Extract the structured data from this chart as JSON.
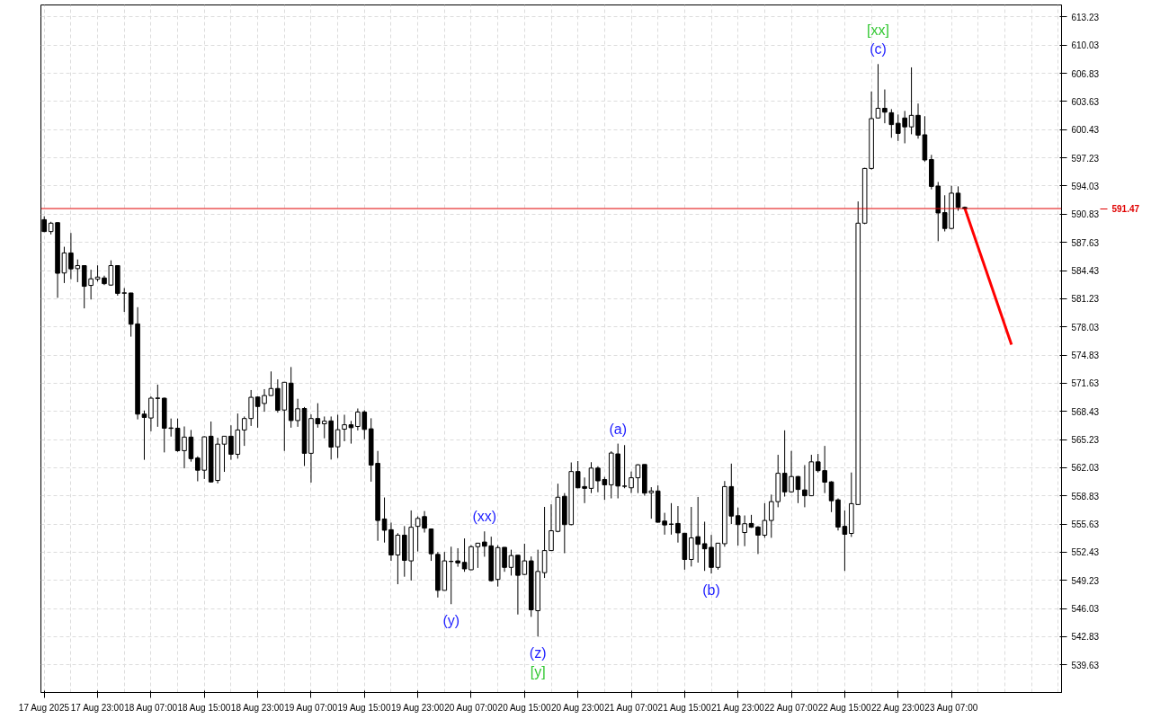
{
  "chart_data": {
    "type": "candlestick",
    "categories": [
      "17 Aug 2025",
      null,
      null,
      null,
      null,
      null,
      null,
      null,
      "17 Aug 23:00",
      null,
      null,
      null,
      null,
      null,
      null,
      null,
      "18 Aug 07:00",
      null,
      null,
      null,
      null,
      null,
      null,
      null,
      "18 Aug 15:00",
      null,
      null,
      null,
      null,
      null,
      null,
      null,
      "18 Aug 23:00",
      null,
      null,
      null,
      null,
      null,
      null,
      null,
      "19 Aug 07:00",
      null,
      null,
      null,
      null,
      null,
      null,
      null,
      "19 Aug 15:00",
      null,
      null,
      null,
      null,
      null,
      null,
      null,
      "19 Aug 23:00",
      null,
      null,
      null,
      null,
      null,
      null,
      null,
      "20 Aug 07:00",
      null,
      null,
      null,
      null,
      null,
      null,
      null,
      "20 Aug 15:00",
      null,
      null,
      null,
      null,
      null,
      null,
      null,
      "20 Aug 23:00",
      null,
      null,
      null,
      null,
      null,
      null,
      null,
      "21 Aug 07:00",
      null,
      null,
      null,
      null,
      null,
      null,
      null,
      "21 Aug 15:00",
      null,
      null,
      null,
      null,
      null,
      null,
      null,
      "21 Aug 23:00",
      null,
      null,
      null,
      null,
      null,
      null,
      null,
      "22 Aug 07:00",
      null,
      null,
      null,
      null,
      null,
      null,
      null,
      "22 Aug 15:00",
      null,
      null,
      null,
      null,
      null,
      null,
      null,
      "22 Aug 23:00",
      null,
      null,
      null,
      null,
      null,
      null,
      null,
      "23 Aug 07:00",
      null,
      null,
      null,
      null,
      null,
      null,
      null,
      null,
      null,
      null,
      null,
      null,
      null,
      null,
      null,
      null
    ],
    "ohlc": [
      [
        590.21,
        590.6,
        588.8,
        588.86
      ],
      [
        588.86,
        589.97,
        588.53,
        589.81
      ],
      [
        589.87,
        589.9,
        581.33,
        584.12
      ],
      [
        584.15,
        587.13,
        583.01,
        586.43
      ],
      [
        586.43,
        588.7,
        583.44,
        584.62
      ],
      [
        584.65,
        585.69,
        583.11,
        584.99
      ],
      [
        584.99,
        585.0,
        580.13,
        582.64
      ],
      [
        582.74,
        584.52,
        581.14,
        583.49
      ],
      [
        583.45,
        585.02,
        583.18,
        583.69
      ],
      [
        583.59,
        583.85,
        582.78,
        582.94
      ],
      [
        582.78,
        585.59,
        582.7,
        584.99
      ],
      [
        584.99,
        585.0,
        581.58,
        581.84
      ],
      [
        581.85,
        582.44,
        579.73,
        581.9
      ],
      [
        581.88,
        581.9,
        576.92,
        578.33
      ],
      [
        578.37,
        580.27,
        567.52,
        568.12
      ],
      [
        568.12,
        568.53,
        562.93,
        567.75
      ],
      [
        567.68,
        570.13,
        566.17,
        569.93
      ],
      [
        569.9,
        571.47,
        566.68,
        569.95
      ],
      [
        569.93,
        570.0,
        563.77,
        566.52
      ],
      [
        566.5,
        567.62,
        565.57,
        566.55
      ],
      [
        566.52,
        567.62,
        563.84,
        563.97
      ],
      [
        563.97,
        566.72,
        561.96,
        565.51
      ],
      [
        565.51,
        566.32,
        562.72,
        563.06
      ],
      [
        563.13,
        563.33,
        560.49,
        561.75
      ],
      [
        561.75,
        565.61,
        560.75,
        565.54
      ],
      [
        565.61,
        567.28,
        560.35,
        560.42
      ],
      [
        560.59,
        565.44,
        560.25,
        564.71
      ],
      [
        564.71,
        565.61,
        561.56,
        565.61
      ],
      [
        565.61,
        566.85,
        562.93,
        563.56
      ],
      [
        563.56,
        568.19,
        563.06,
        566.32
      ],
      [
        566.32,
        567.85,
        564.51,
        567.62
      ],
      [
        567.62,
        570.86,
        566.78,
        570.03
      ],
      [
        570.06,
        570.13,
        566.58,
        568.99
      ],
      [
        569.33,
        570.96,
        568.39,
        570.23
      ],
      [
        570.23,
        572.97,
        570.2,
        571.03
      ],
      [
        571.03,
        572.07,
        568.29,
        568.56
      ],
      [
        568.59,
        571.74,
        563.94,
        571.74
      ],
      [
        571.64,
        573.47,
        566.58,
        567.39
      ],
      [
        567.39,
        569.86,
        566.68,
        568.73
      ],
      [
        568.76,
        568.93,
        562.23,
        563.67
      ],
      [
        563.67,
        568.09,
        560.35,
        567.62
      ],
      [
        567.62,
        569.36,
        566.58,
        567.02
      ],
      [
        567.02,
        567.85,
        565.37,
        567.32
      ],
      [
        567.35,
        567.85,
        562.96,
        564.37
      ],
      [
        564.41,
        568.05,
        563.13,
        566.35
      ],
      [
        566.41,
        568.05,
        565.04,
        566.91
      ],
      [
        566.91,
        567.35,
        564.77,
        566.58
      ],
      [
        566.72,
        568.76,
        566.27,
        568.36
      ],
      [
        568.36,
        568.56,
        565.27,
        566.38
      ],
      [
        566.45,
        567.65,
        560.45,
        562.33
      ],
      [
        562.53,
        563.94,
        553.73,
        556.04
      ],
      [
        556.21,
        558.65,
        553.53,
        554.93
      ],
      [
        554.99,
        555.8,
        551.45,
        552.12
      ],
      [
        552.12,
        554.6,
        548.8,
        554.37
      ],
      [
        554.37,
        555.4,
        549.65,
        551.51
      ],
      [
        551.45,
        557.18,
        549.21,
        555.27
      ],
      [
        555.37,
        556.51,
        552.52,
        556.27
      ],
      [
        556.48,
        557.11,
        554.67,
        555.17
      ],
      [
        555.07,
        555.1,
        551.45,
        552.26
      ],
      [
        552.19,
        552.46,
        547.29,
        548.1
      ],
      [
        548.1,
        552.46,
        548.1,
        551.45
      ],
      [
        551.38,
        553.06,
        546.53,
        551.4
      ],
      [
        551.45,
        552.89,
        550.78,
        551.22
      ],
      [
        551.28,
        554.0,
        550.21,
        550.54
      ],
      [
        550.44,
        553.23,
        550.4,
        553.06
      ],
      [
        553.06,
        553.5,
        550.65,
        553.46
      ],
      [
        553.59,
        554.8,
        551.92,
        553.12
      ],
      [
        553.16,
        554.2,
        549.1,
        549.2
      ],
      [
        549.34,
        553.23,
        548.53,
        552.96
      ],
      [
        552.99,
        553.0,
        550.21,
        550.71
      ],
      [
        550.71,
        552.72,
        549.78,
        552.05
      ],
      [
        552.09,
        552.1,
        545.36,
        549.81
      ],
      [
        549.91,
        553.4,
        549.84,
        551.45
      ],
      [
        551.45,
        551.95,
        545.09,
        545.89
      ],
      [
        545.79,
        552.72,
        542.85,
        550.25
      ],
      [
        550.11,
        557.58,
        549.51,
        552.62
      ],
      [
        552.62,
        557.88,
        552.6,
        554.87
      ],
      [
        554.8,
        560.22,
        554.7,
        558.68
      ],
      [
        558.78,
        559.15,
        552.32,
        555.57
      ],
      [
        555.57,
        562.63,
        555.5,
        561.6
      ],
      [
        561.6,
        562.79,
        559.7,
        559.75
      ],
      [
        559.89,
        560.92,
        558.01,
        559.69
      ],
      [
        559.69,
        562.66,
        559.15,
        561.99
      ],
      [
        561.99,
        562.2,
        559.25,
        560.54
      ],
      [
        560.69,
        560.99,
        558.38,
        560.09
      ],
      [
        560.09,
        563.9,
        558.55,
        563.7
      ],
      [
        563.6,
        564.77,
        558.55,
        559.95
      ],
      [
        559.92,
        564.6,
        559.7,
        559.95
      ],
      [
        559.75,
        561.6,
        559.15,
        560.89
      ],
      [
        560.89,
        562.43,
        559.15,
        562.36
      ],
      [
        562.4,
        562.4,
        558.85,
        559.15
      ],
      [
        559.19,
        559.82,
        556.24,
        559.39
      ],
      [
        559.39,
        560.02,
        555.8,
        555.84
      ],
      [
        555.97,
        556.91,
        554.43,
        555.53
      ],
      [
        555.6,
        558.01,
        554.43,
        555.63
      ],
      [
        555.7,
        557.68,
        553.53,
        554.63
      ],
      [
        554.59,
        554.6,
        550.45,
        551.61
      ],
      [
        551.61,
        557.58,
        550.81,
        554.06
      ],
      [
        554.2,
        558.71,
        551.25,
        553.33
      ],
      [
        553.4,
        555.9,
        550.31,
        552.82
      ],
      [
        552.99,
        554.4,
        550.01,
        550.71
      ],
      [
        550.71,
        553.5,
        550.45,
        553.46
      ],
      [
        553.4,
        560.52,
        553.06,
        559.89
      ],
      [
        559.89,
        562.5,
        555.63,
        556.54
      ],
      [
        556.58,
        557.51,
        553.19,
        555.57
      ],
      [
        554.67,
        556.61,
        553.12,
        555.67
      ],
      [
        555.7,
        556.68,
        555.2,
        555.27
      ],
      [
        555.3,
        555.4,
        552.23,
        554.37
      ],
      [
        554.37,
        558.0,
        554.07,
        556.04
      ],
      [
        556.04,
        558.98,
        554.07,
        558.18
      ],
      [
        558.18,
        563.5,
        557.54,
        561.4
      ],
      [
        561.4,
        566.28,
        558.75,
        559.29
      ],
      [
        559.29,
        563.94,
        559.2,
        561.03
      ],
      [
        561.03,
        561.1,
        558.01,
        559.56
      ],
      [
        559.51,
        562.33,
        557.54,
        558.85
      ],
      [
        558.85,
        563.5,
        558.8,
        562.7
      ],
      [
        562.7,
        563.6,
        561.49,
        561.7
      ],
      [
        561.7,
        564.51,
        559.15,
        560.39
      ],
      [
        560.42,
        560.5,
        556.99,
        558.28
      ],
      [
        558.38,
        558.55,
        554.9,
        555.29
      ],
      [
        555.37,
        557.18,
        550.31,
        554.47
      ],
      [
        554.57,
        561.49,
        554.17,
        557.95
      ],
      [
        557.85,
        592.28,
        557.8,
        589.81
      ],
      [
        589.81,
        596.1,
        589.7,
        596.03
      ],
      [
        596.03,
        604.77,
        595.9,
        601.69
      ],
      [
        601.76,
        607.88,
        601.7,
        602.86
      ],
      [
        602.86,
        605.0,
        601.16,
        602.42
      ],
      [
        602.36,
        602.76,
        599.51,
        601.01
      ],
      [
        601.16,
        602.16,
        599.15,
        600.01
      ],
      [
        601.76,
        602.56,
        598.88,
        600.75
      ],
      [
        600.75,
        607.51,
        599.91,
        602.06
      ],
      [
        602.06,
        603.4,
        599.41,
        599.81
      ],
      [
        599.85,
        601.96,
        596.8,
        596.99
      ],
      [
        597.04,
        597.57,
        593.65,
        593.99
      ],
      [
        594.03,
        594.49,
        587.76,
        590.97
      ],
      [
        591.01,
        592.98,
        588.87,
        589.21
      ],
      [
        589.21,
        594.06,
        589.11,
        593.22
      ],
      [
        593.22,
        593.99,
        591.22,
        591.6
      ],
      [
        591.6,
        591.7,
        591.4,
        591.47
      ],
      null,
      null,
      null,
      null,
      null,
      null,
      null,
      null,
      null,
      null,
      null,
      null,
      null,
      null
    ],
    "series": [
      {
        "type": "line",
        "color": "#ff0000",
        "values": [
          null,
          null,
          null,
          null,
          null,
          null,
          null,
          null,
          null,
          null,
          null,
          null,
          null,
          null,
          null,
          null,
          null,
          null,
          null,
          null,
          null,
          null,
          null,
          null,
          null,
          null,
          null,
          null,
          null,
          null,
          null,
          null,
          null,
          null,
          null,
          null,
          null,
          null,
          null,
          null,
          null,
          null,
          null,
          null,
          null,
          null,
          null,
          null,
          null,
          null,
          null,
          null,
          null,
          null,
          null,
          null,
          null,
          null,
          null,
          null,
          null,
          null,
          null,
          null,
          null,
          null,
          null,
          null,
          null,
          null,
          null,
          null,
          null,
          null,
          null,
          null,
          null,
          null,
          null,
          null,
          null,
          null,
          null,
          null,
          null,
          null,
          null,
          null,
          null,
          null,
          null,
          null,
          null,
          null,
          null,
          null,
          null,
          null,
          null,
          null,
          null,
          null,
          null,
          null,
          null,
          null,
          null,
          null,
          null,
          null,
          null,
          null,
          null,
          null,
          null,
          null,
          null,
          null,
          null,
          null,
          null,
          null,
          null,
          null,
          null,
          null,
          null,
          null,
          null,
          null,
          null,
          null,
          null,
          null,
          null,
          null,
          null,
          null,
          591.5,
          null,
          null,
          null,
          null,
          null,
          null,
          576.0,
          null,
          null,
          null,
          null,
          null,
          null,
          null
        ]
      }
    ],
    "ylim": [
      536.5,
      614.6
    ],
    "yticks": [
      539.63,
      542.83,
      546.03,
      549.23,
      552.43,
      555.63,
      558.83,
      562.03,
      565.23,
      568.43,
      571.63,
      574.83,
      578.03,
      581.23,
      584.43,
      587.63,
      590.83,
      594.03,
      597.23,
      600.43,
      603.63,
      606.83,
      610.03,
      613.23
    ],
    "grid": true,
    "ref_lines": [
      {
        "axis": "y",
        "value": 591.47,
        "label": "591.47",
        "color": "#e00000"
      }
    ],
    "annotations": [
      "(c)",
      "[xx]",
      "(a)",
      "(xx)",
      "(y)",
      "(b)",
      "(z)",
      "[y]"
    ]
  }
}
